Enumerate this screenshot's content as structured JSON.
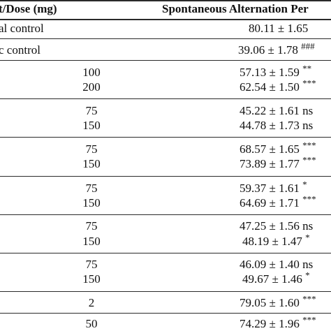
{
  "header": {
    "col1": "t/Dose (mg)",
    "col2": "Spontaneous Alternation Per"
  },
  "rows": [
    {
      "label": "al control",
      "dose": "",
      "value": "80.11 ± 1.65",
      "sig": ""
    },
    {
      "label": "c control",
      "dose": "",
      "value": "39.06 ± 1.78",
      "sig": "###"
    },
    {
      "label": "",
      "dose": "100",
      "value": "57.13 ± 1.59",
      "sig": "**"
    },
    {
      "label": "",
      "dose": "200",
      "value": "62.54 ± 1.50",
      "sig": "***"
    },
    {
      "label": "",
      "dose": "75",
      "value": "45.22 ± 1.61",
      "sig": "ns"
    },
    {
      "label": "",
      "dose": "150",
      "value": "44.78 ± 1.73",
      "sig": "ns"
    },
    {
      "label": "",
      "dose": "75",
      "value": "68.57 ± 1.65",
      "sig": "***"
    },
    {
      "label": "",
      "dose": "150",
      "value": "73.89 ± 1.77",
      "sig": "***"
    },
    {
      "label": "",
      "dose": "75",
      "value": "59.37 ± 1.61",
      "sig": "*"
    },
    {
      "label": "",
      "dose": "150",
      "value": "64.69 ± 1.71",
      "sig": "***"
    },
    {
      "label": "",
      "dose": "75",
      "value": "47.25 ± 1.56",
      "sig": "ns"
    },
    {
      "label": "",
      "dose": "150",
      "value": "48.19 ± 1.47",
      "sig": "*"
    },
    {
      "label": "",
      "dose": "75",
      "value": "46.09 ± 1.40",
      "sig": "ns"
    },
    {
      "label": "",
      "dose": "150",
      "value": "49.67 ± 1.46",
      "sig": "*"
    },
    {
      "label": "",
      "dose": "2",
      "value": "79.05 ± 1.60",
      "sig": "***"
    },
    {
      "label": "",
      "dose": "50",
      "value": "74.29 ± 1.96",
      "sig": "***"
    }
  ]
}
